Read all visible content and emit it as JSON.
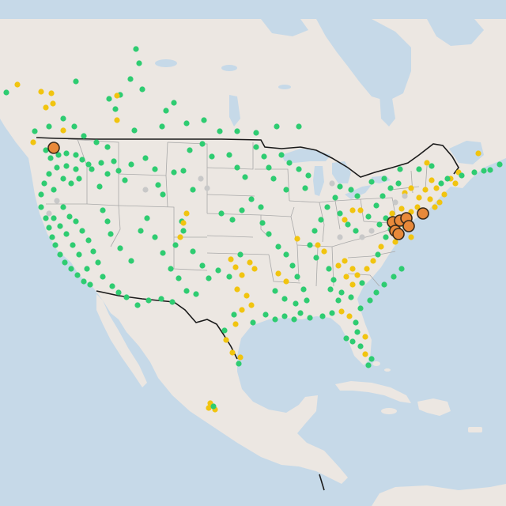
{
  "map": {
    "colors": {
      "water": "#c6d9e8",
      "land": "#ece7e2",
      "state_border": "#a9a9a9",
      "national_border": "#1a1a1a",
      "marker_green": "#2ecc71",
      "marker_yellow": "#f1c40f",
      "marker_gray": "#c8c8c8",
      "marker_orange": "#e8893a",
      "marker_orange_outline": "#3a2a1a"
    },
    "legend": null
  }
}
